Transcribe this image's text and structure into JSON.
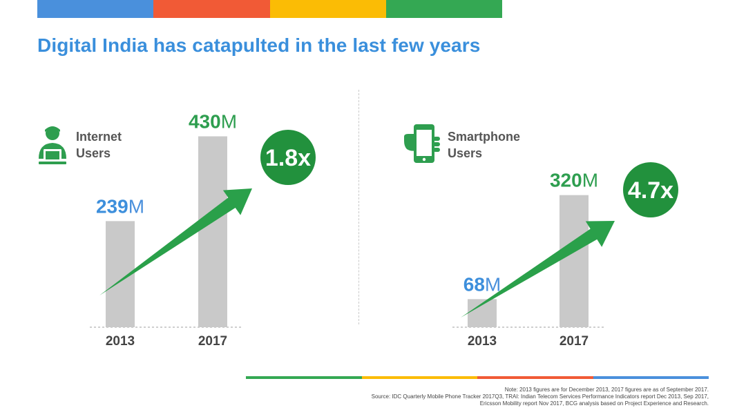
{
  "title": "Digital India has catapulted in the last few years",
  "colors": {
    "blue": "#4a90dc",
    "red": "#f15a36",
    "yellow": "#fbbc05",
    "green": "#34a853",
    "bar": "#c9c9c9",
    "title": "#3a8fdc",
    "value_number": "#3d8fdc",
    "value_suffix": "#4a90dc",
    "value_2017": "#2e9e4f",
    "arrow": "#2aa04a",
    "badge": "#22913d"
  },
  "chart_data": [
    {
      "type": "bar",
      "label_line1": "Internet",
      "label_line2": "Users",
      "icon": "internet-user-icon",
      "categories": [
        "2013",
        "2017"
      ],
      "values": [
        239,
        430
      ],
      "value_labels": [
        {
          "number": "239",
          "suffix": "M"
        },
        {
          "number": "430",
          "suffix": "M"
        }
      ],
      "unit": "M",
      "growth": "1.8x"
    },
    {
      "type": "bar",
      "label_line1": "Smartphone",
      "label_line2": "Users",
      "icon": "smartphone-icon",
      "categories": [
        "2013",
        "2017"
      ],
      "values": [
        68,
        320
      ],
      "value_labels": [
        {
          "number": "68",
          "suffix": "M"
        },
        {
          "number": "320",
          "suffix": "M"
        }
      ],
      "unit": "M",
      "growth": "4.7x"
    }
  ],
  "notes": {
    "line1": "Note: 2013 figures are for December 2013, 2017 figures are as of September 2017.",
    "line2": "Source: IDC Quarterly Mobile Phone Tracker 2017Q3, TRAI: Indian Telecom Services Performance Indicators report Dec 2013, Sep 2017,",
    "line3": "Ericsson Mobility report Nov 2017, BCG analysis based on Project Experience and Research."
  }
}
